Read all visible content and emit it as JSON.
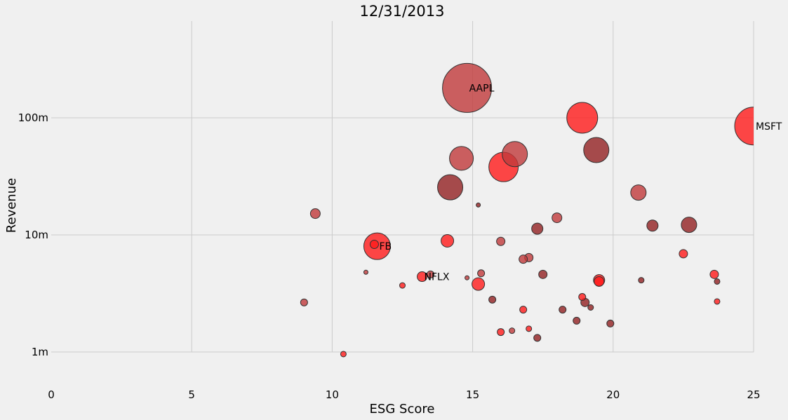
{
  "chart_data": {
    "type": "scatter",
    "title": "12/31/2013",
    "xlabel": "ESG Score",
    "ylabel": "Revenue",
    "xlim": [
      0,
      25
    ],
    "ylim_millions": [
      0.5,
      600
    ],
    "y_scale": "log",
    "x_ticks": [
      {
        "value": 0,
        "label": "0"
      },
      {
        "value": 5,
        "label": "5"
      },
      {
        "value": 10,
        "label": "10"
      },
      {
        "value": 15,
        "label": "15"
      },
      {
        "value": 20,
        "label": "20"
      },
      {
        "value": 25,
        "label": "25"
      }
    ],
    "y_ticks": [
      {
        "value": 1,
        "label": "1m"
      },
      {
        "value": 10,
        "label": "10m"
      },
      {
        "value": 100,
        "label": "100m"
      }
    ],
    "grid": true,
    "colors": {
      "bright": "#ff1a1a",
      "medium": "#c0393b",
      "dark": "#922022",
      "grid": "#cbcbcb",
      "background": "#f0f0f0"
    },
    "points": [
      {
        "x": 14.8,
        "y": 180,
        "size": 35,
        "shade": "medium",
        "label": "AAPL"
      },
      {
        "x": 25.0,
        "y": 85,
        "size": 27,
        "shade": "bright",
        "label": "MSFT"
      },
      {
        "x": 18.9,
        "y": 100,
        "size": 22,
        "shade": "bright"
      },
      {
        "x": 19.4,
        "y": 53,
        "size": 18,
        "shade": "dark"
      },
      {
        "x": 16.5,
        "y": 49,
        "size": 18,
        "shade": "medium"
      },
      {
        "x": 14.6,
        "y": 45,
        "size": 17,
        "shade": "medium"
      },
      {
        "x": 16.1,
        "y": 38,
        "size": 21,
        "shade": "bright"
      },
      {
        "x": 14.2,
        "y": 25.5,
        "size": 18,
        "shade": "dark"
      },
      {
        "x": 20.9,
        "y": 23,
        "size": 11,
        "shade": "medium"
      },
      {
        "x": 15.2,
        "y": 18,
        "size": 3,
        "shade": "dark"
      },
      {
        "x": 9.4,
        "y": 15.2,
        "size": 7,
        "shade": "medium"
      },
      {
        "x": 18.0,
        "y": 14,
        "size": 7,
        "shade": "medium"
      },
      {
        "x": 22.7,
        "y": 12.2,
        "size": 11,
        "shade": "dark"
      },
      {
        "x": 21.4,
        "y": 12.0,
        "size": 8,
        "shade": "dark"
      },
      {
        "x": 17.3,
        "y": 11.3,
        "size": 8,
        "shade": "dark"
      },
      {
        "x": 14.1,
        "y": 8.9,
        "size": 9,
        "shade": "bright"
      },
      {
        "x": 16.0,
        "y": 8.8,
        "size": 6,
        "shade": "medium"
      },
      {
        "x": 11.6,
        "y": 8.0,
        "size": 19,
        "shade": "bright",
        "label": "FB"
      },
      {
        "x": 11.5,
        "y": 8.3,
        "size": 6,
        "shade": "bright"
      },
      {
        "x": 22.5,
        "y": 6.9,
        "size": 6,
        "shade": "bright"
      },
      {
        "x": 17.0,
        "y": 6.4,
        "size": 6,
        "shade": "medium"
      },
      {
        "x": 16.8,
        "y": 6.2,
        "size": 6,
        "shade": "medium"
      },
      {
        "x": 11.2,
        "y": 4.8,
        "size": 3,
        "shade": "medium"
      },
      {
        "x": 15.3,
        "y": 4.7,
        "size": 5,
        "shade": "medium"
      },
      {
        "x": 17.5,
        "y": 4.6,
        "size": 6,
        "shade": "dark"
      },
      {
        "x": 23.6,
        "y": 4.6,
        "size": 6,
        "shade": "bright"
      },
      {
        "x": 13.2,
        "y": 4.4,
        "size": 7,
        "shade": "bright",
        "label": "NFLX"
      },
      {
        "x": 13.5,
        "y": 4.6,
        "size": 5,
        "shade": "medium"
      },
      {
        "x": 14.8,
        "y": 4.3,
        "size": 3,
        "shade": "medium"
      },
      {
        "x": 19.5,
        "y": 4.1,
        "size": 8,
        "shade": "bright"
      },
      {
        "x": 19.5,
        "y": 4.0,
        "size": 7,
        "shade": "bright"
      },
      {
        "x": 21.0,
        "y": 4.1,
        "size": 4,
        "shade": "dark"
      },
      {
        "x": 23.7,
        "y": 4.0,
        "size": 4,
        "shade": "dark"
      },
      {
        "x": 15.2,
        "y": 3.8,
        "size": 9,
        "shade": "bright"
      },
      {
        "x": 12.5,
        "y": 3.7,
        "size": 4,
        "shade": "bright"
      },
      {
        "x": 18.9,
        "y": 2.95,
        "size": 5,
        "shade": "bright"
      },
      {
        "x": 15.7,
        "y": 2.8,
        "size": 5,
        "shade": "dark"
      },
      {
        "x": 19.0,
        "y": 2.65,
        "size": 6,
        "shade": "dark"
      },
      {
        "x": 9.0,
        "y": 2.65,
        "size": 5,
        "shade": "medium"
      },
      {
        "x": 23.7,
        "y": 2.7,
        "size": 4,
        "shade": "bright"
      },
      {
        "x": 19.2,
        "y": 2.4,
        "size": 4,
        "shade": "dark"
      },
      {
        "x": 18.2,
        "y": 2.3,
        "size": 5,
        "shade": "dark"
      },
      {
        "x": 16.8,
        "y": 2.3,
        "size": 5,
        "shade": "bright"
      },
      {
        "x": 18.7,
        "y": 1.85,
        "size": 5,
        "shade": "dark"
      },
      {
        "x": 19.9,
        "y": 1.75,
        "size": 5,
        "shade": "dark"
      },
      {
        "x": 17.0,
        "y": 1.58,
        "size": 4,
        "shade": "bright"
      },
      {
        "x": 16.4,
        "y": 1.52,
        "size": 4,
        "shade": "medium"
      },
      {
        "x": 16.0,
        "y": 1.48,
        "size": 5,
        "shade": "bright"
      },
      {
        "x": 17.3,
        "y": 1.32,
        "size": 5,
        "shade": "dark"
      },
      {
        "x": 10.4,
        "y": 0.96,
        "size": 4,
        "shade": "bright"
      }
    ]
  }
}
